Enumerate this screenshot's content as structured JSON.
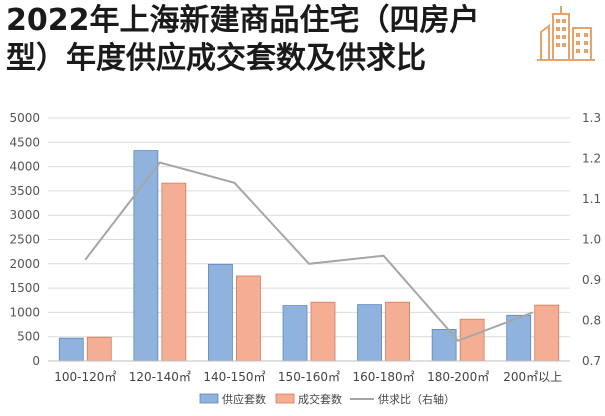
{
  "header": {
    "title_line1": "2022年上海新建商品住宅（四房户",
    "title_line2": "型）年度供应成交套数及供求比"
  },
  "colors": {
    "supply": "#8fb3dc",
    "supply_stroke": "#5b87bd",
    "deal": "#f4ae94",
    "deal_stroke": "#d9785a",
    "ratio": "#a6a6a6",
    "grid": "#dcdcdc",
    "logo": "#e8a26b"
  },
  "icons": {
    "logo": "building-icon"
  },
  "chart_data": {
    "type": "bar",
    "categories": [
      "100-120㎡",
      "120-140㎡",
      "140-150㎡",
      "150-160㎡",
      "160-180㎡",
      "180-200㎡",
      "200㎡以上"
    ],
    "series": [
      {
        "name": "供应套数",
        "values": [
          470,
          4330,
          1990,
          1140,
          1160,
          650,
          940
        ],
        "axis": "left"
      },
      {
        "name": "成交套数",
        "values": [
          490,
          3660,
          1750,
          1210,
          1210,
          860,
          1150
        ],
        "axis": "left"
      }
    ],
    "line_series": {
      "name": "供求比（右轴）",
      "values": [
        0.95,
        1.19,
        1.14,
        0.94,
        0.96,
        0.75,
        0.82
      ],
      "axis": "right"
    },
    "y_left": {
      "min": 0,
      "max": 5000,
      "ticks": [
        "0",
        "500",
        "1000",
        "1500",
        "2000",
        "2500",
        "3000",
        "3500",
        "4000",
        "4500",
        "5000"
      ]
    },
    "y_right": {
      "min": 0.7,
      "max": 1.3,
      "ticks": [
        "0.7",
        "0.8",
        "0.9",
        "1.0",
        "1.1",
        "1.2",
        "1.3"
      ]
    },
    "grid": true,
    "legend_position": "bottom"
  }
}
